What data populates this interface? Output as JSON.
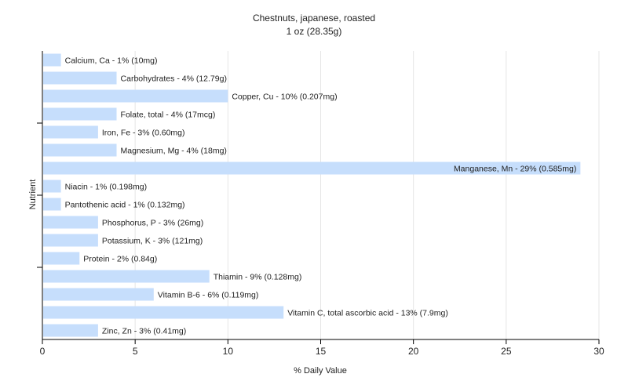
{
  "chart_data": {
    "type": "bar",
    "orientation": "horizontal",
    "title": "Chestnuts, japanese, roasted",
    "subtitle": "1 oz (28.35g)",
    "xlabel": "% Daily Value",
    "ylabel": "Nutrient",
    "xlim": [
      0,
      30
    ],
    "xticks": [
      0,
      5,
      10,
      15,
      20,
      25,
      30
    ],
    "grid": true,
    "bar_color": "#c6defc",
    "categories": [
      "Calcium, Ca",
      "Carbohydrates",
      "Copper, Cu",
      "Folate, total",
      "Iron, Fe",
      "Magnesium, Mg",
      "Manganese, Mn",
      "Niacin",
      "Pantothenic acid",
      "Phosphorus, P",
      "Potassium, K",
      "Protein",
      "Thiamin",
      "Vitamin B-6",
      "Vitamin C, total ascorbic acid",
      "Zinc, Zn"
    ],
    "values": [
      1,
      4,
      10,
      4,
      3,
      4,
      29,
      1,
      1,
      3,
      3,
      2,
      9,
      6,
      13,
      3
    ],
    "labels": [
      "Calcium, Ca - 1% (10mg)",
      "Carbohydrates - 4% (12.79g)",
      "Copper, Cu - 10% (0.207mg)",
      "Folate, total - 4% (17mcg)",
      "Iron, Fe - 3% (0.60mg)",
      "Magnesium, Mg - 4% (18mg)",
      "Manganese, Mn - 29% (0.585mg)",
      "Niacin - 1% (0.198mg)",
      "Pantothenic acid - 1% (0.132mg)",
      "Phosphorus, P - 3% (26mg)",
      "Potassium, K - 3% (121mg)",
      "Protein - 2% (0.84g)",
      "Thiamin - 9% (0.128mg)",
      "Vitamin B-6 - 6% (0.119mg)",
      "Vitamin C, total ascorbic acid - 13% (7.9mg)",
      "Zinc, Zn - 3% (0.41mg)"
    ]
  }
}
